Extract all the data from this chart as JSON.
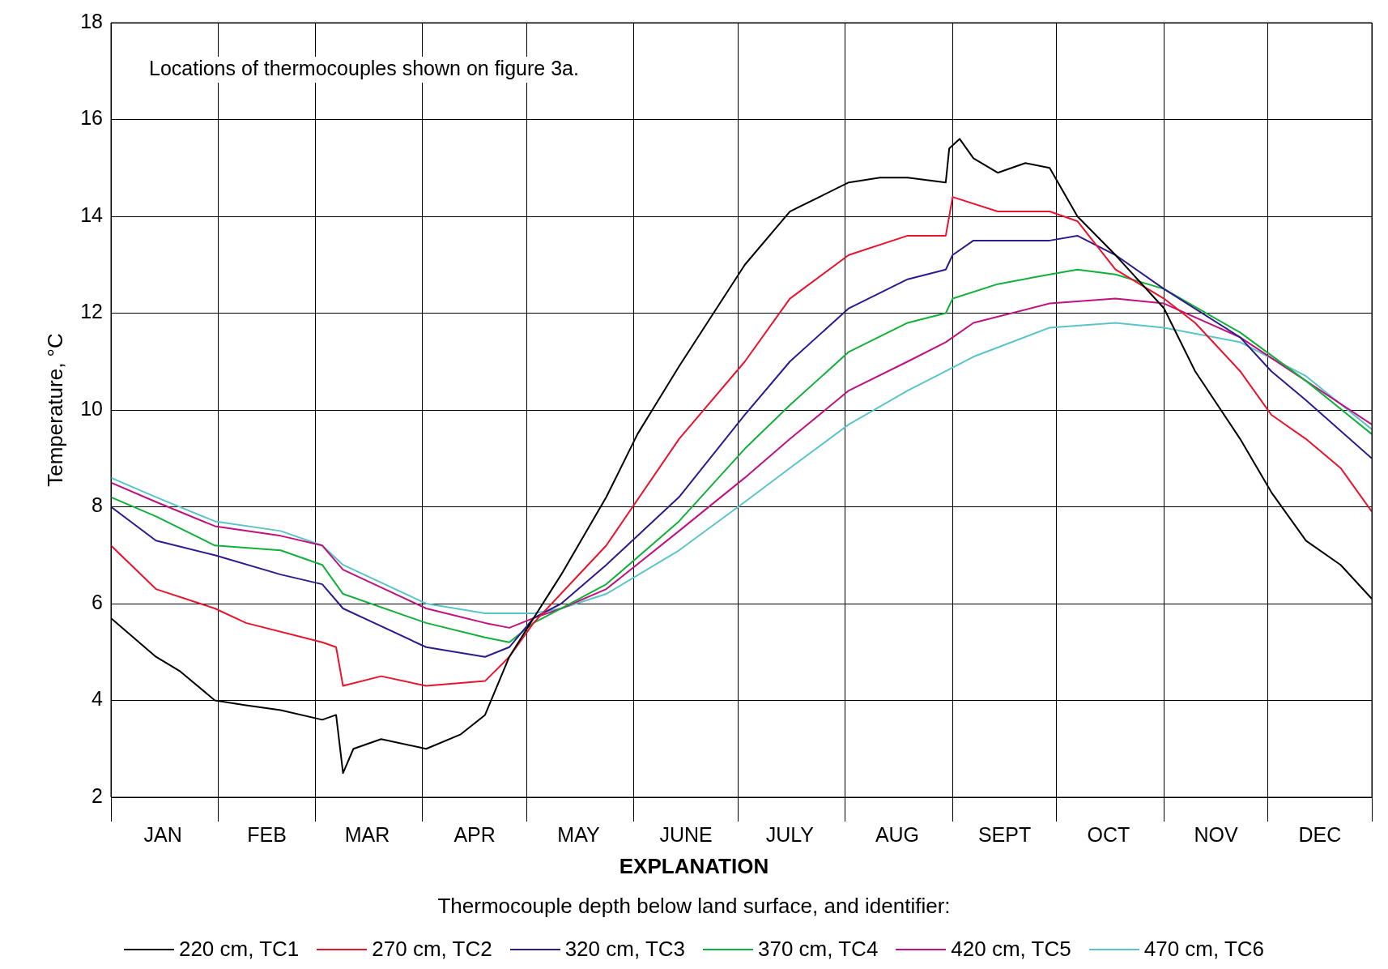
{
  "chart_data": {
    "type": "line",
    "ylabel": "Temperature, °C",
    "legend_title": "EXPLANATION\nThermocouple depth below land surface, and identifier:",
    "legend": "bottom",
    "grid": true,
    "marker": "none",
    "line_style": "solid",
    "annotations": [
      "Locations of thermocouples shown on figure 3a."
    ],
    "xlim": [
      "--01-01",
      "--12-31"
    ],
    "ylim": [
      2,
      18
    ],
    "yticks": [
      2,
      4,
      6,
      8,
      10,
      12,
      14,
      16,
      18
    ],
    "xticks": [
      {
        "value": "--01-01",
        "label": null
      },
      {
        "value": "--01-16",
        "label": "JAN"
      },
      {
        "value": "--02-01",
        "label": null
      },
      {
        "value": "--02-15",
        "label": "FEB"
      },
      {
        "value": "--03-01",
        "label": null
      },
      {
        "value": "--03-16",
        "label": "MAR"
      },
      {
        "value": "--04-01",
        "label": null
      },
      {
        "value": "--04-16",
        "label": "APR"
      },
      {
        "value": "--05-01",
        "label": null
      },
      {
        "value": "--05-16",
        "label": "MAY"
      },
      {
        "value": "--06-01",
        "label": null
      },
      {
        "value": "--06-16",
        "label": "JUNE"
      },
      {
        "value": "--07-01",
        "label": null
      },
      {
        "value": "--07-16",
        "label": "JULY"
      },
      {
        "value": "--08-01",
        "label": null
      },
      {
        "value": "--08-16",
        "label": "AUG"
      },
      {
        "value": "--09-01",
        "label": null
      },
      {
        "value": "--09-16",
        "label": "SEPT"
      },
      {
        "value": "--10-01",
        "label": null
      },
      {
        "value": "--10-16",
        "label": "OCT"
      },
      {
        "value": "--11-01",
        "label": null
      },
      {
        "value": "--11-16",
        "label": "NOV"
      },
      {
        "value": "--12-01",
        "label": null
      },
      {
        "value": "--12-16",
        "label": "DEC"
      },
      {
        "value": "--12-31",
        "label": null
      }
    ],
    "series": [
      {
        "name": "220 cm, TC1",
        "color": "#000000",
        "x": [
          "--01-01",
          "--01-14",
          "--01-21",
          "--01-31",
          "--02-09",
          "--02-19",
          "--03-03",
          "--03-07",
          "--03-09",
          "--03-12",
          "--03-20",
          "--04-02",
          "--04-12",
          "--04-19",
          "--04-26",
          "--05-03",
          "--05-11",
          "--05-24",
          "--06-02",
          "--06-14",
          "--07-03",
          "--07-16",
          "--08-02",
          "--08-11",
          "--08-19",
          "--08-30",
          "--08-31",
          "--09-03",
          "--09-07",
          "--09-14",
          "--09-22",
          "--09-29",
          "--10-07",
          "--10-18",
          "--11-01",
          "--11-10",
          "--11-23",
          "--12-02",
          "--12-12",
          "--12-22",
          "--12-31"
        ],
        "values": [
          5.7,
          4.9,
          4.6,
          4.0,
          3.9,
          3.8,
          3.6,
          3.7,
          2.5,
          3.0,
          3.2,
          3.0,
          3.3,
          3.7,
          4.9,
          5.7,
          6.6,
          8.2,
          9.5,
          10.9,
          13.0,
          14.1,
          14.7,
          14.8,
          14.8,
          14.7,
          15.4,
          15.6,
          15.2,
          14.9,
          15.1,
          15.0,
          14.0,
          13.2,
          12.1,
          10.8,
          9.4,
          8.3,
          7.3,
          6.8,
          6.1
        ]
      },
      {
        "name": "270 cm, TC2",
        "color": "#e8142d",
        "x": [
          "--01-01",
          "--01-14",
          "--01-31",
          "--02-09",
          "--03-03",
          "--03-07",
          "--03-09",
          "--03-20",
          "--04-02",
          "--04-19",
          "--04-26",
          "--05-03",
          "--05-24",
          "--06-14",
          "--07-03",
          "--07-16",
          "--08-02",
          "--08-19",
          "--08-30",
          "--09-01",
          "--09-14",
          "--09-29",
          "--10-07",
          "--10-18",
          "--11-01",
          "--11-10",
          "--11-23",
          "--12-02",
          "--12-12",
          "--12-22",
          "--12-31"
        ],
        "values": [
          7.2,
          6.3,
          5.9,
          5.6,
          5.2,
          5.1,
          4.3,
          4.5,
          4.3,
          4.4,
          4.9,
          5.6,
          7.2,
          9.4,
          11.0,
          12.3,
          13.2,
          13.6,
          13.6,
          14.4,
          14.1,
          14.1,
          13.9,
          12.9,
          12.3,
          11.8,
          10.8,
          9.9,
          9.4,
          8.8,
          7.9
        ]
      },
      {
        "name": "320 cm, TC3",
        "color": "#2e1a8c",
        "x": [
          "--01-01",
          "--01-14",
          "--01-31",
          "--02-19",
          "--03-03",
          "--03-09",
          "--04-02",
          "--04-19",
          "--04-26",
          "--05-03",
          "--05-11",
          "--05-24",
          "--06-14",
          "--07-03",
          "--07-16",
          "--08-02",
          "--08-19",
          "--08-30",
          "--09-01",
          "--09-07",
          "--09-29",
          "--10-07",
          "--10-18",
          "--11-01",
          "--11-23",
          "--12-02",
          "--12-12",
          "--12-31"
        ],
        "values": [
          8.0,
          7.3,
          7.0,
          6.6,
          6.4,
          5.9,
          5.1,
          4.9,
          5.1,
          5.7,
          6.0,
          6.8,
          8.2,
          9.9,
          11.0,
          12.1,
          12.7,
          12.9,
          13.2,
          13.5,
          13.5,
          13.6,
          13.2,
          12.5,
          11.5,
          10.8,
          10.2,
          9.0
        ]
      },
      {
        "name": "370 cm, TC4",
        "color": "#12b03a",
        "x": [
          "--01-01",
          "--01-14",
          "--01-31",
          "--02-19",
          "--03-03",
          "--03-09",
          "--04-02",
          "--04-19",
          "--04-26",
          "--05-03",
          "--05-11",
          "--05-24",
          "--06-14",
          "--07-03",
          "--07-16",
          "--08-02",
          "--08-19",
          "--08-30",
          "--09-01",
          "--09-14",
          "--09-29",
          "--10-07",
          "--10-18",
          "--11-01",
          "--11-23",
          "--12-12",
          "--12-31"
        ],
        "values": [
          8.2,
          7.8,
          7.2,
          7.1,
          6.8,
          6.2,
          5.6,
          5.3,
          5.2,
          5.6,
          5.9,
          6.4,
          7.7,
          9.2,
          10.1,
          11.2,
          11.8,
          12.0,
          12.3,
          12.6,
          12.8,
          12.9,
          12.8,
          12.5,
          11.6,
          10.6,
          9.5
        ]
      },
      {
        "name": "420 cm, TC5",
        "color": "#c0127f",
        "x": [
          "--01-01",
          "--01-14",
          "--01-31",
          "--02-19",
          "--03-03",
          "--03-09",
          "--04-02",
          "--04-19",
          "--04-26",
          "--05-03",
          "--05-11",
          "--05-24",
          "--06-14",
          "--07-03",
          "--07-16",
          "--08-02",
          "--08-19",
          "--08-30",
          "--09-07",
          "--09-29",
          "--10-18",
          "--11-01",
          "--11-23",
          "--12-12",
          "--12-31"
        ],
        "values": [
          8.5,
          8.1,
          7.6,
          7.4,
          7.2,
          6.7,
          5.9,
          5.6,
          5.5,
          5.7,
          5.9,
          6.3,
          7.5,
          8.6,
          9.4,
          10.4,
          11.0,
          11.4,
          11.8,
          12.2,
          12.3,
          12.2,
          11.5,
          10.6,
          9.7
        ]
      },
      {
        "name": "470 cm, TC6",
        "color": "#5bc4c8",
        "x": [
          "--01-01",
          "--01-14",
          "--01-31",
          "--02-19",
          "--03-03",
          "--03-09",
          "--04-02",
          "--04-19",
          "--05-03",
          "--05-11",
          "--05-24",
          "--06-14",
          "--07-03",
          "--07-16",
          "--08-02",
          "--08-19",
          "--08-30",
          "--09-07",
          "--09-29",
          "--10-18",
          "--11-01",
          "--11-23",
          "--12-12",
          "--12-31"
        ],
        "values": [
          8.6,
          8.2,
          7.7,
          7.5,
          7.2,
          6.8,
          6.0,
          5.8,
          5.8,
          5.9,
          6.2,
          7.1,
          8.1,
          8.8,
          9.7,
          10.4,
          10.8,
          11.1,
          11.7,
          11.8,
          11.7,
          11.4,
          10.7,
          9.6
        ]
      }
    ]
  }
}
